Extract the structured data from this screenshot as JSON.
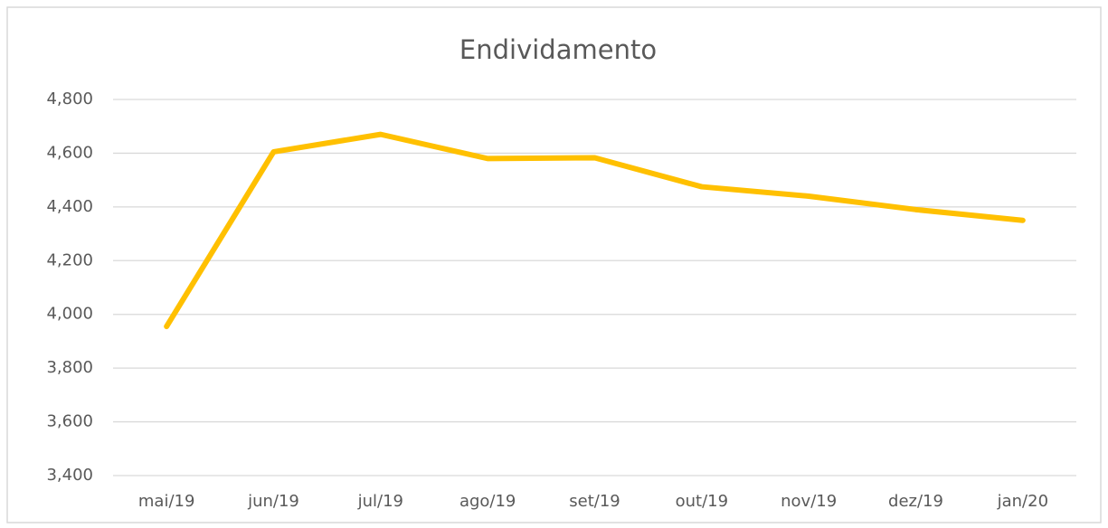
{
  "chart_data": {
    "type": "line",
    "title": "Endividamento",
    "categories": [
      "mai/19",
      "jun/19",
      "jul/19",
      "ago/19",
      "set/19",
      "out/19",
      "nov/19",
      "dez/19",
      "jan/20"
    ],
    "series": [
      {
        "name": "Endividamento",
        "color": "#ffc000",
        "values": [
          3955,
          4605,
          4670,
          4580,
          4583,
          4475,
          4440,
          4390,
          4350
        ]
      }
    ],
    "ylim": [
      3400,
      4800
    ],
    "yticks": [
      {
        "value": 3400,
        "label": "3,400"
      },
      {
        "value": 3600,
        "label": "3,600"
      },
      {
        "value": 3800,
        "label": "3,800"
      },
      {
        "value": 4000,
        "label": "4,000"
      },
      {
        "value": 4200,
        "label": "4,200"
      },
      {
        "value": 4400,
        "label": "4,400"
      },
      {
        "value": 4600,
        "label": "4,600"
      },
      {
        "value": 4800,
        "label": "4,800"
      }
    ],
    "grid": true
  }
}
